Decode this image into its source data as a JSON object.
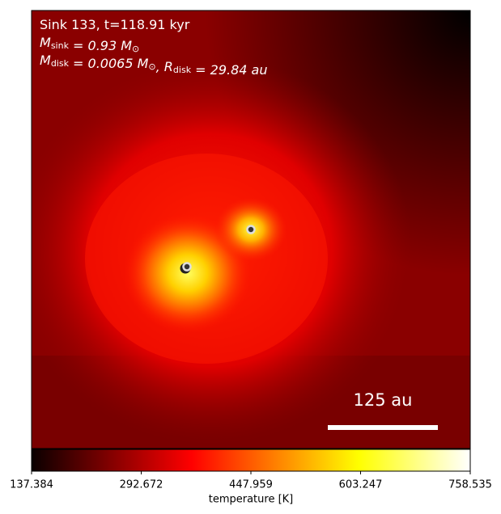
{
  "chart_data": {
    "type": "image",
    "annotation_lines": [
      [
        {
          "text": "Sink 133, t=118.91 kyr"
        }
      ],
      [
        {
          "text": "M"
        },
        {
          "sub": "sink"
        },
        {
          "text": " = 0.93 M"
        },
        {
          "sub": "⊙"
        }
      ],
      [
        {
          "text": "M"
        },
        {
          "sub": "disk"
        },
        {
          "text": " = 0.0065 M"
        },
        {
          "sub": "⊙"
        },
        {
          "text": ", R"
        },
        {
          "sub": "disk"
        },
        {
          "text": " = 29.84 au"
        }
      ]
    ],
    "scale_bar_label": "125 au",
    "colorbar": {
      "label": "temperature [K]",
      "colormap": "hot",
      "clim": [
        137.384,
        758.535
      ],
      "ticks": [
        137.384,
        292.672,
        447.959,
        603.247,
        758.535
      ]
    }
  }
}
